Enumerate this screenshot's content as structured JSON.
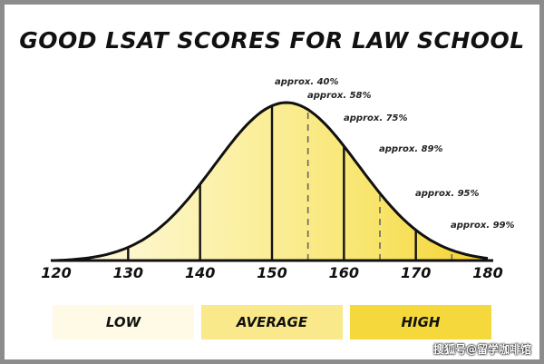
{
  "chart_data": {
    "type": "area",
    "title": "GOOD LSAT SCORES FOR LAW SCHOOL",
    "xlabel": "",
    "ylabel": "",
    "xlim": [
      120,
      180
    ],
    "mean": 152,
    "sd": 10,
    "x_ticks": [
      120,
      130,
      140,
      150,
      160,
      170,
      180
    ],
    "solid_dividers": [
      130,
      140,
      150,
      160,
      170
    ],
    "dashed_markers": [
      155,
      165,
      175
    ],
    "annotations": [
      {
        "x": 150,
        "label": "approx. 40%"
      },
      {
        "x": 155,
        "label": "approx. 58%"
      },
      {
        "x": 160,
        "label": "approx. 75%"
      },
      {
        "x": 165,
        "label": "approx. 89%"
      },
      {
        "x": 170,
        "label": "approx. 95%"
      },
      {
        "x": 175,
        "label": "approx. 99%"
      }
    ],
    "bands": [
      {
        "name": "LOW",
        "from": 120,
        "to": 140,
        "color": "#fdf6cf"
      },
      {
        "name": "AVERAGE",
        "from": 140,
        "to": 160,
        "color": "#faea8c"
      },
      {
        "name": "HIGH",
        "from": 160,
        "to": 180,
        "color": "#f5d43a"
      }
    ],
    "legend": [
      {
        "label": "LOW",
        "color": "#fefae6"
      },
      {
        "label": "AVERAGE",
        "color": "#f9e98a"
      },
      {
        "label": "HIGH",
        "color": "#f5d83c"
      }
    ]
  },
  "watermark": "搜狐号@留学咖啡馆",
  "colors": {
    "frame": "#8c8c8c",
    "curve": "#111111",
    "dashed": "#666666"
  }
}
